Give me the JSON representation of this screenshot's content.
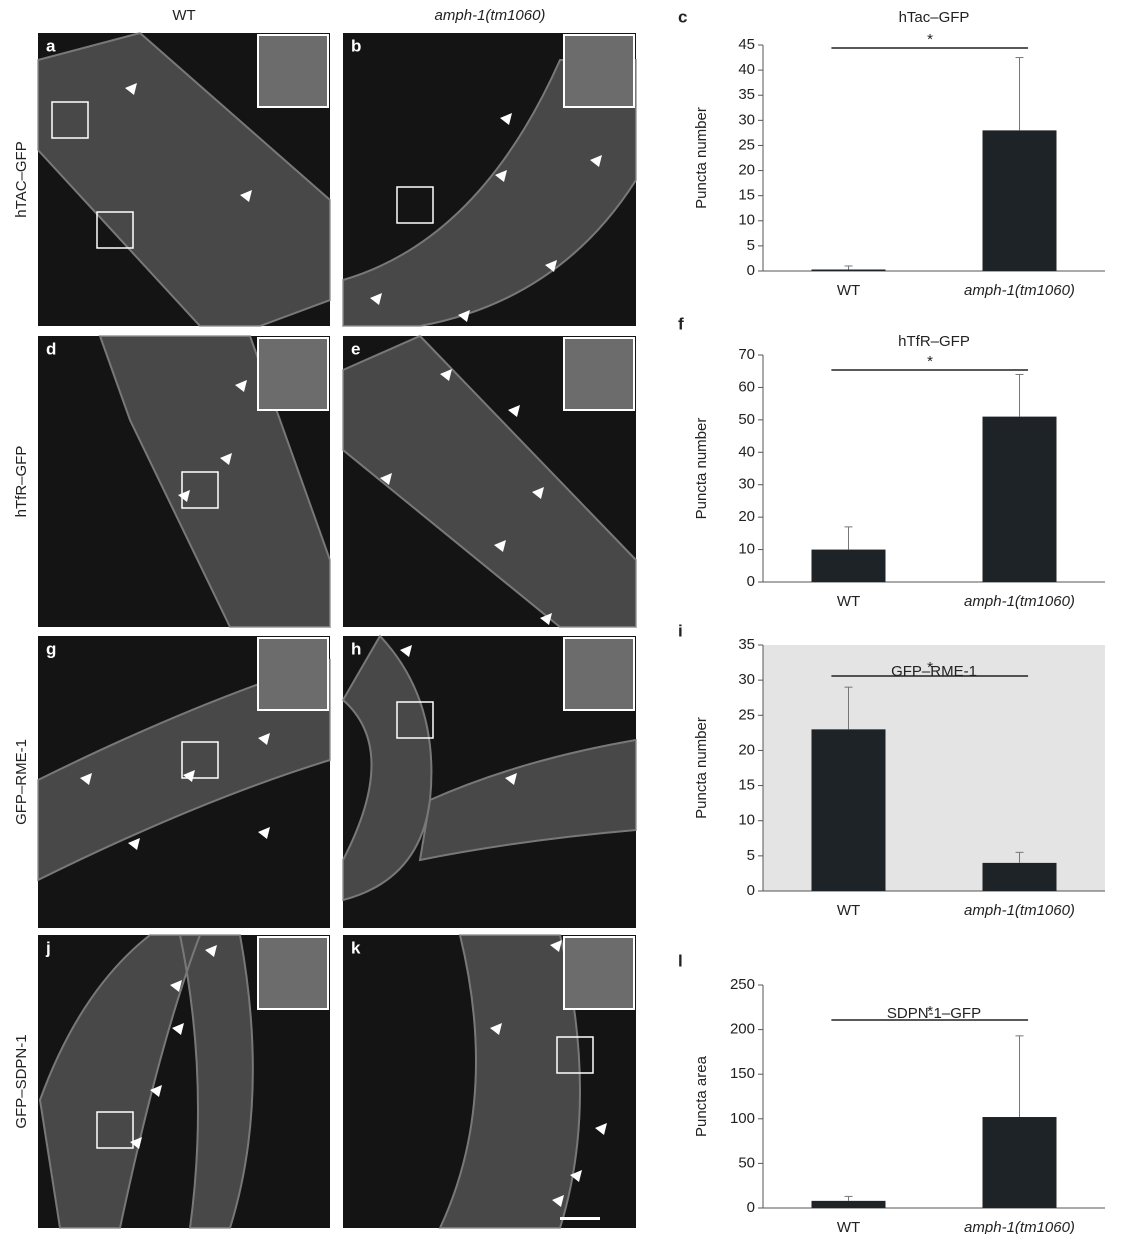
{
  "figure": {
    "columns": [
      "WT",
      "amph-1(tm1060)"
    ],
    "rows": [
      "hTAC–GFP",
      "hTfR–GFP",
      "GFP–RME-1",
      "GFP–SDPN-1"
    ],
    "panel_letters": [
      "a",
      "b",
      "d",
      "e",
      "g",
      "h",
      "j",
      "k"
    ]
  },
  "chart_data": [
    {
      "type": "bar",
      "panel_letter": "c",
      "title": "hTac–GFP",
      "y_label": "Puncta number",
      "categories": [
        "WT",
        "amph-1(tm1060)"
      ],
      "values": [
        0.3,
        28
      ],
      "errors": [
        0.7,
        14.5
      ],
      "color": "#1e2328",
      "ylim": [
        0,
        45
      ],
      "yticks": [
        0,
        5,
        10,
        15,
        20,
        25,
        30,
        35,
        40,
        45
      ],
      "significance": "*"
    },
    {
      "type": "bar",
      "panel_letter": "f",
      "title": "hTfR–GFP",
      "y_label": "Puncta number",
      "categories": [
        "WT",
        "amph-1(tm1060)"
      ],
      "values": [
        10,
        51
      ],
      "errors": [
        7,
        13
      ],
      "color": "#1e2328",
      "ylim": [
        0,
        70
      ],
      "yticks": [
        0,
        10,
        20,
        30,
        40,
        50,
        60,
        70
      ],
      "significance": "*"
    },
    {
      "type": "bar",
      "panel_letter": "i",
      "title": "GFP–RME-1",
      "y_label": "Puncta number",
      "categories": [
        "WT",
        "amph-1(tm1060)"
      ],
      "values": [
        23,
        4
      ],
      "errors": [
        6,
        1.5
      ],
      "color": "#1e2328",
      "ylim": [
        0,
        35
      ],
      "yticks": [
        0,
        5,
        10,
        15,
        20,
        25,
        30,
        35
      ],
      "significance": "*",
      "plot_background": "#e4e4e4"
    },
    {
      "type": "bar",
      "panel_letter": "l",
      "title": "SDPN-1–GFP",
      "y_label": "Puncta area",
      "categories": [
        "WT",
        "amph-1(tm1060)"
      ],
      "values": [
        8,
        102
      ],
      "errors": [
        5,
        91
      ],
      "color": "#1e2328",
      "ylim": [
        0,
        250
      ],
      "yticks": [
        0,
        50,
        100,
        150,
        200,
        250
      ],
      "significance": "*"
    }
  ]
}
